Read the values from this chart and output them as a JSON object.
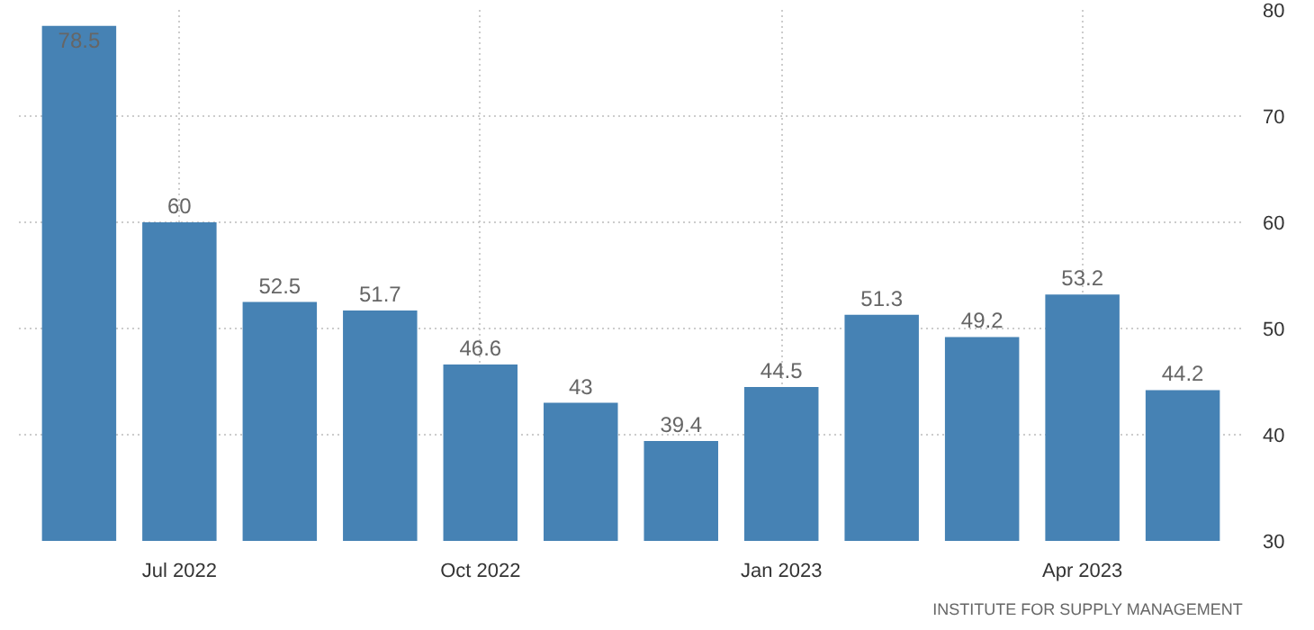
{
  "chart_data": {
    "type": "bar",
    "categories": [
      null,
      "Jul 2022",
      null,
      null,
      "Oct 2022",
      null,
      null,
      "Jan 2023",
      null,
      null,
      "Apr 2023",
      null
    ],
    "values": [
      78.5,
      60,
      52.5,
      51.7,
      46.6,
      43,
      39.4,
      44.5,
      51.3,
      49.2,
      53.2,
      44.2
    ],
    "color": "#4682b4",
    "ylim": [
      30,
      80
    ],
    "yticks": [
      30,
      40,
      50,
      60,
      70,
      80
    ],
    "grid": true,
    "data_labels": true,
    "annotations": [
      "INSTITUTE FOR SUPPLY MANAGEMENT"
    ]
  }
}
